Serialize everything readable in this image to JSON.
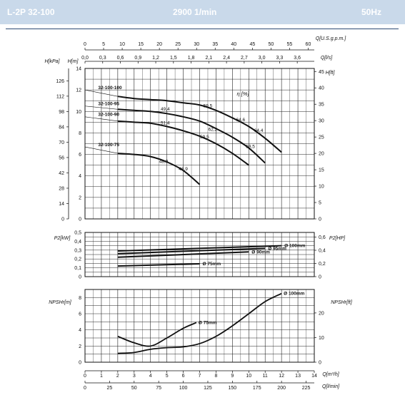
{
  "header": {
    "model": "L-2P 32-100",
    "speed": "2900 1/min",
    "frequency": "50Hz"
  },
  "axes": {
    "top_usgpm": {
      "label": "Q[U.S.g.p.m.]",
      "ticks": [
        "0",
        "5",
        "10",
        "15",
        "20",
        "25",
        "30",
        "35",
        "40",
        "45",
        "50",
        "55",
        "60"
      ]
    },
    "top_ls": {
      "label": "Q[l/s]",
      "ticks": [
        "0,0",
        "0,3",
        "0,6",
        "0,9",
        "1,2",
        "1,5",
        "1,8",
        "2,1",
        "2,4",
        "2,7",
        "3,0",
        "3,3",
        "3,6"
      ]
    },
    "head_kpa": {
      "label": "H[kPa]",
      "ticks": [
        "0",
        "14",
        "28",
        "42",
        "56",
        "70",
        "84",
        "98",
        "112",
        "126"
      ]
    },
    "head_m": {
      "label": "H[m]",
      "ticks": [
        "0",
        "2",
        "4",
        "6",
        "8",
        "10",
        "12",
        "14"
      ]
    },
    "head_ft": {
      "label": "H[ft]",
      "ticks": [
        "0",
        "5",
        "10",
        "15",
        "20",
        "25",
        "30",
        "35",
        "40",
        "45"
      ]
    },
    "eff_label": "η [%]",
    "power_kw": {
      "label": "P2[kW]",
      "ticks": [
        "0",
        "0,1",
        "0,2",
        "0,3",
        "0,4",
        "0,5"
      ]
    },
    "power_hp": {
      "label": "P2[HP]",
      "ticks": [
        "0",
        "0,2",
        "0,4",
        "0,6"
      ]
    },
    "npsh_m": {
      "label": "NPSHr[m]",
      "ticks": [
        "0",
        "2",
        "4",
        "6",
        "8"
      ]
    },
    "npsh_ft": {
      "label": "NPSHr[ft]",
      "ticks": [
        "0",
        "10",
        "20"
      ]
    },
    "bottom_m3h": {
      "label": "Q[m³/h]",
      "ticks": [
        "0",
        "1",
        "2",
        "3",
        "4",
        "5",
        "6",
        "7",
        "8",
        "9",
        "10",
        "11",
        "12",
        "13",
        "14"
      ]
    },
    "bottom_lmin": {
      "label": "Q[l/min]",
      "ticks": [
        "0",
        "25",
        "50",
        "75",
        "100",
        "125",
        "150",
        "175",
        "200",
        "225"
      ]
    }
  },
  "chart_data": [
    {
      "type": "line",
      "title": "",
      "xlabel": "Q[m³/h]",
      "ylabel": "H[m]",
      "xlim": [
        0,
        14
      ],
      "ylim": [
        0,
        14
      ],
      "grid": true,
      "series": [
        {
          "name": "32-100-100",
          "x": [
            0,
            2,
            3,
            4,
            5,
            6,
            7,
            8,
            9,
            10,
            11,
            12
          ],
          "y": [
            12.0,
            11.4,
            11.2,
            11.1,
            11.0,
            10.8,
            10.6,
            10.1,
            9.4,
            8.6,
            7.5,
            6.2
          ]
        },
        {
          "name": "32-100-95",
          "x": [
            0,
            2,
            3,
            4,
            5,
            6,
            7,
            8,
            9,
            10,
            11
          ],
          "y": [
            10.5,
            10.2,
            10.1,
            10.0,
            9.8,
            9.5,
            9.1,
            8.4,
            7.6,
            6.6,
            5.2
          ]
        },
        {
          "name": "32-100-90",
          "x": [
            0,
            2,
            3,
            4,
            5,
            6,
            7,
            8,
            9,
            10
          ],
          "y": [
            9.5,
            9.1,
            9.0,
            8.9,
            8.6,
            8.2,
            7.7,
            7.0,
            6.1,
            5.0
          ]
        },
        {
          "name": "32-100-75",
          "x": [
            0,
            2,
            3,
            4,
            5,
            6,
            7
          ],
          "y": [
            6.7,
            6.1,
            6.0,
            5.8,
            5.3,
            4.5,
            3.2
          ]
        }
      ],
      "efficiency_labels": [
        {
          "text": "49,4",
          "x": 4.9,
          "y": 10.1
        },
        {
          "text": "59,5",
          "x": 7.5,
          "y": 10.4
        },
        {
          "text": "64,6",
          "x": 9.5,
          "y": 9.1
        },
        {
          "text": "64,4",
          "x": 10.6,
          "y": 8.1
        },
        {
          "text": "51,4",
          "x": 4.9,
          "y": 8.8
        },
        {
          "text": "62,2",
          "x": 7.8,
          "y": 8.2
        },
        {
          "text": "59,5",
          "x": 7.3,
          "y": 7.5
        },
        {
          "text": "59,5",
          "x": 10.1,
          "y": 6.6
        },
        {
          "text": "48,9",
          "x": 4.8,
          "y": 5.2
        },
        {
          "text": "46,9",
          "x": 6.0,
          "y": 4.5
        }
      ]
    },
    {
      "type": "line",
      "title": "",
      "xlabel": "Q[m³/h]",
      "ylabel": "P2[kW]",
      "xlim": [
        0,
        14
      ],
      "ylim": [
        0,
        0.5
      ],
      "grid": true,
      "series": [
        {
          "name": "Ø 100mm",
          "x": [
            2,
            12
          ],
          "y": [
            0.29,
            0.35
          ]
        },
        {
          "name": "Ø 95mm",
          "x": [
            2,
            11
          ],
          "y": [
            0.26,
            0.32
          ]
        },
        {
          "name": "Ø 90mm",
          "x": [
            2,
            10
          ],
          "y": [
            0.22,
            0.28
          ]
        },
        {
          "name": "Ø 75mm",
          "x": [
            2,
            7
          ],
          "y": [
            0.12,
            0.145
          ]
        }
      ]
    },
    {
      "type": "line",
      "title": "",
      "xlabel": "Q[m³/h]",
      "ylabel": "NPSHr[m]",
      "xlim": [
        0,
        14
      ],
      "ylim": [
        0,
        9
      ],
      "grid": true,
      "series": [
        {
          "name": "Ø 100mm",
          "x": [
            2,
            3,
            4,
            5,
            6,
            7,
            8,
            9,
            10,
            11,
            12
          ],
          "y": [
            1.1,
            1.2,
            1.6,
            1.8,
            1.9,
            2.3,
            3.2,
            4.5,
            6.0,
            7.5,
            8.5
          ]
        },
        {
          "name": "Ø 75mm",
          "x": [
            2,
            3,
            4,
            5,
            6,
            6.8
          ],
          "y": [
            3.2,
            2.4,
            2.0,
            3.0,
            4.2,
            4.9
          ]
        }
      ]
    }
  ]
}
